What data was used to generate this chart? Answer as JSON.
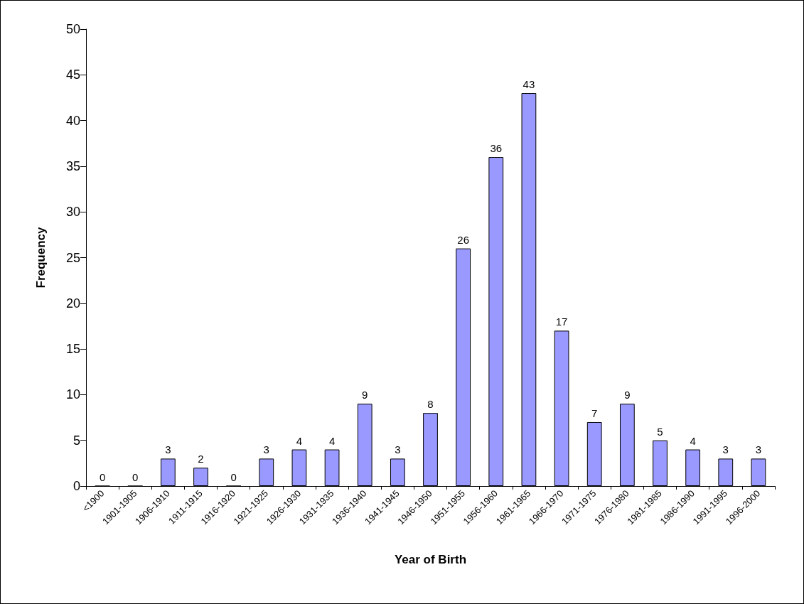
{
  "chart_data": {
    "type": "bar",
    "xlabel": "Year of Birth",
    "ylabel": "Frequency",
    "categories": [
      "<1900",
      "1901-1905",
      "1906-1910",
      "1911-1915",
      "1916-1920",
      "1921-1925",
      "1926-1930",
      "1931-1935",
      "1936-1940",
      "1941-1945",
      "1946-1950",
      "1951-1955",
      "1956-1960",
      "1961-1965",
      "1966-1970",
      "1971-1975",
      "1976-1980",
      "1981-1985",
      "1986-1990",
      "1991-1995",
      "1996-2000"
    ],
    "values": [
      0,
      0,
      3,
      2,
      0,
      3,
      4,
      4,
      9,
      3,
      8,
      26,
      36,
      43,
      17,
      7,
      9,
      5,
      4,
      3,
      3
    ],
    "color": "#9999ff",
    "ylim": [
      0,
      50
    ],
    "yticks": [
      0,
      5,
      10,
      15,
      20,
      25,
      30,
      35,
      40,
      45,
      50
    ],
    "grid": false,
    "data_labels": true
  }
}
